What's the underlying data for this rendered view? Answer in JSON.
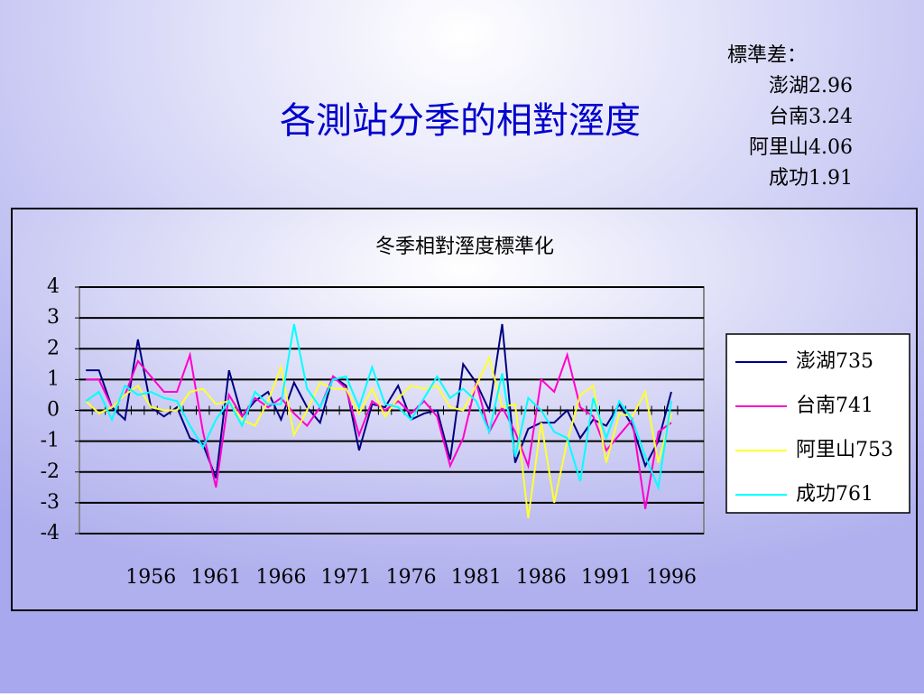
{
  "header": {
    "title": "各測站分季的相對溼度",
    "note_heading": "標準差：",
    "notes": [
      "澎湖2.96",
      "台南3.24",
      "阿里山4.06",
      "成功1.91"
    ]
  },
  "chart_data": {
    "type": "line",
    "title": "冬季相對溼度標準化",
    "x": [
      1951,
      1952,
      1953,
      1954,
      1955,
      1956,
      1957,
      1958,
      1959,
      1960,
      1961,
      1962,
      1963,
      1964,
      1965,
      1966,
      1967,
      1968,
      1969,
      1970,
      1971,
      1972,
      1973,
      1974,
      1975,
      1976,
      1977,
      1978,
      1979,
      1980,
      1981,
      1982,
      1983,
      1984,
      1985,
      1986,
      1987,
      1988,
      1989,
      1990,
      1991,
      1992,
      1993,
      1994,
      1995,
      1996
    ],
    "xlim": [
      1950.5,
      1998.5
    ],
    "xticks": [
      1956,
      1961,
      1966,
      1971,
      1976,
      1981,
      1986,
      1991,
      1996
    ],
    "ylim": [
      -4,
      4
    ],
    "yticks": [
      -4,
      -3,
      -2,
      -1,
      0,
      1,
      2,
      3,
      4
    ],
    "grid": true,
    "legend": "right",
    "series": [
      {
        "name": "澎湖735",
        "color": "#000080",
        "values": [
          1.3,
          1.3,
          0.1,
          -0.3,
          2.3,
          0.1,
          -0.2,
          0.1,
          -0.9,
          -1.1,
          -2.2,
          1.3,
          -0.2,
          0.3,
          0.6,
          -0.3,
          0.9,
          0.1,
          -0.4,
          1.1,
          0.8,
          -1.3,
          0.2,
          0.1,
          0.8,
          -0.3,
          -0.1,
          0.0,
          -1.6,
          1.5,
          0.9,
          0.0,
          2.8,
          -1.7,
          -0.6,
          -0.4,
          -0.4,
          0.0,
          -0.9,
          -0.3,
          -0.5,
          0.2,
          -0.5,
          -1.8,
          -1.0,
          0.6
        ]
      },
      {
        "name": "台南741",
        "color": "#ff00cc",
        "values": [
          1.0,
          1.0,
          0.1,
          0.5,
          1.6,
          1.1,
          0.6,
          0.6,
          1.8,
          -0.7,
          -2.5,
          0.5,
          -0.2,
          0.4,
          0.1,
          0.4,
          -0.1,
          -0.5,
          0.1,
          1.1,
          0.7,
          -0.8,
          0.3,
          0.0,
          0.3,
          -0.1,
          0.3,
          -0.2,
          -1.8,
          -0.9,
          0.9,
          -0.7,
          0.1,
          -0.7,
          -1.8,
          1.0,
          0.6,
          1.8,
          0.1,
          -0.2,
          -1.3,
          -0.8,
          -0.3,
          -3.2,
          -0.7,
          -0.4
        ]
      },
      {
        "name": "阿里山753",
        "color": "#ffff33",
        "values": [
          0.3,
          -0.1,
          0.1,
          0.5,
          0.8,
          0.1,
          0.0,
          0.0,
          0.6,
          0.7,
          0.2,
          0.3,
          -0.3,
          -0.5,
          0.3,
          1.4,
          -0.8,
          0.0,
          0.9,
          0.7,
          0.7,
          -0.1,
          0.7,
          -0.2,
          0.4,
          0.8,
          0.7,
          0.8,
          0.1,
          0.0,
          0.8,
          1.7,
          0.1,
          0.2,
          -3.5,
          -0.4,
          -3.0,
          -1.0,
          0.5,
          0.8,
          -1.7,
          -0.1,
          -0.2,
          0.6,
          -1.7,
          -0.1
        ]
      },
      {
        "name": "成功761",
        "color": "#00ffff",
        "values": [
          0.3,
          0.6,
          -0.3,
          0.8,
          0.5,
          0.6,
          0.4,
          0.3,
          -0.5,
          -1.2,
          -0.3,
          0.3,
          -0.5,
          0.6,
          0.2,
          0.2,
          2.8,
          0.7,
          0.1,
          1.0,
          1.1,
          0.1,
          1.4,
          0.2,
          0.1,
          -0.3,
          0.4,
          1.1,
          0.4,
          0.7,
          0.3,
          -0.7,
          1.2,
          -1.5,
          0.4,
          0.0,
          -0.7,
          -0.9,
          -2.3,
          0.4,
          -0.9,
          0.3,
          -0.3,
          -1.5,
          -2.5,
          0.3
        ]
      }
    ]
  }
}
